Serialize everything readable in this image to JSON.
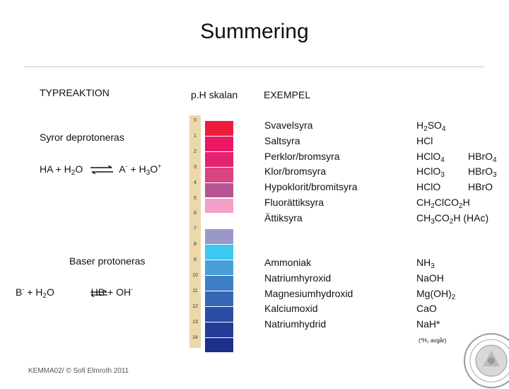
{
  "title": "Summering",
  "left": {
    "header": "TYPREAKTION",
    "acids_label": "Syror deprotoneras",
    "acid_eq": {
      "lhs": "HA + H",
      "lhs_sub": "2",
      "lhs_end": "O",
      "rhs": "A",
      "rhs_sup": "-",
      "rhs_mid": " + H",
      "rhs_sub": "3",
      "rhs_end": "O",
      "rhs_sup2": "+"
    },
    "bases_label": "Baser  protoneras",
    "base_eq": {
      "b": "B",
      "b_sup": "-",
      "mid": " + H",
      "mid_sub": "2",
      "mid_end": "O",
      "hb": "HB",
      "rhs": " + OH",
      "rhs_sup": "-"
    }
  },
  "ph": {
    "header": "p.H skalan",
    "ticks": [
      "0",
      "1",
      "2",
      "3",
      "4",
      "5",
      "6",
      "7",
      "8",
      "9",
      "10",
      "11",
      "12",
      "13",
      "14"
    ],
    "colors": [
      "#ed1c3a",
      "#ec1763",
      "#e4226f",
      "#d8447f",
      "#b75493",
      "#f2a0c7",
      "#ffffff",
      "#9a98c8",
      "#3cc8ef",
      "#4a9fd8",
      "#3c7fc6",
      "#3567b6",
      "#2a4ea6",
      "#233e98",
      "#1d2f89"
    ]
  },
  "examples": {
    "header": "EXEMPEL",
    "acids": [
      "Svavelsyra",
      "Saltsyra",
      "Perklor/bromsyra",
      "Klor/bromsyra",
      "Hypoklorit/bromitsyra",
      "Fluorättiksyra",
      "Ättiksyra"
    ],
    "bases": [
      "Ammoniak",
      "Natriumhyroxid",
      "Magnesiumhydroxid",
      "Kalciumoxid",
      "Natriumhydrid"
    ]
  },
  "formulas": {
    "acids": [
      [
        "H",
        "2",
        "SO",
        "4"
      ],
      [
        "HCl"
      ],
      [
        "HClO",
        "4"
      ],
      [
        "HClO",
        "3"
      ],
      [
        "HClO"
      ],
      [
        "CH",
        "2",
        "ClCO",
        "2",
        "H"
      ],
      [
        "CH",
        "3",
        "CO",
        "2",
        "H (HAc)"
      ]
    ],
    "acids_right": [
      null,
      null,
      [
        "HBr",
        "O",
        "4"
      ],
      [
        "HBr",
        "O",
        "3"
      ],
      [
        "HBr",
        "O"
      ],
      null,
      null
    ],
    "bases": [
      [
        "NH",
        "3"
      ],
      [
        "Na",
        "OH"
      ],
      [
        "Mg(OH)",
        "2"
      ],
      [
        "Ca",
        "O"
      ],
      [
        "Na",
        "H*"
      ]
    ],
    "note": "(*H₂ avgår)"
  },
  "footer": "KEMMA02/ © Sofi Elmroth 2011"
}
